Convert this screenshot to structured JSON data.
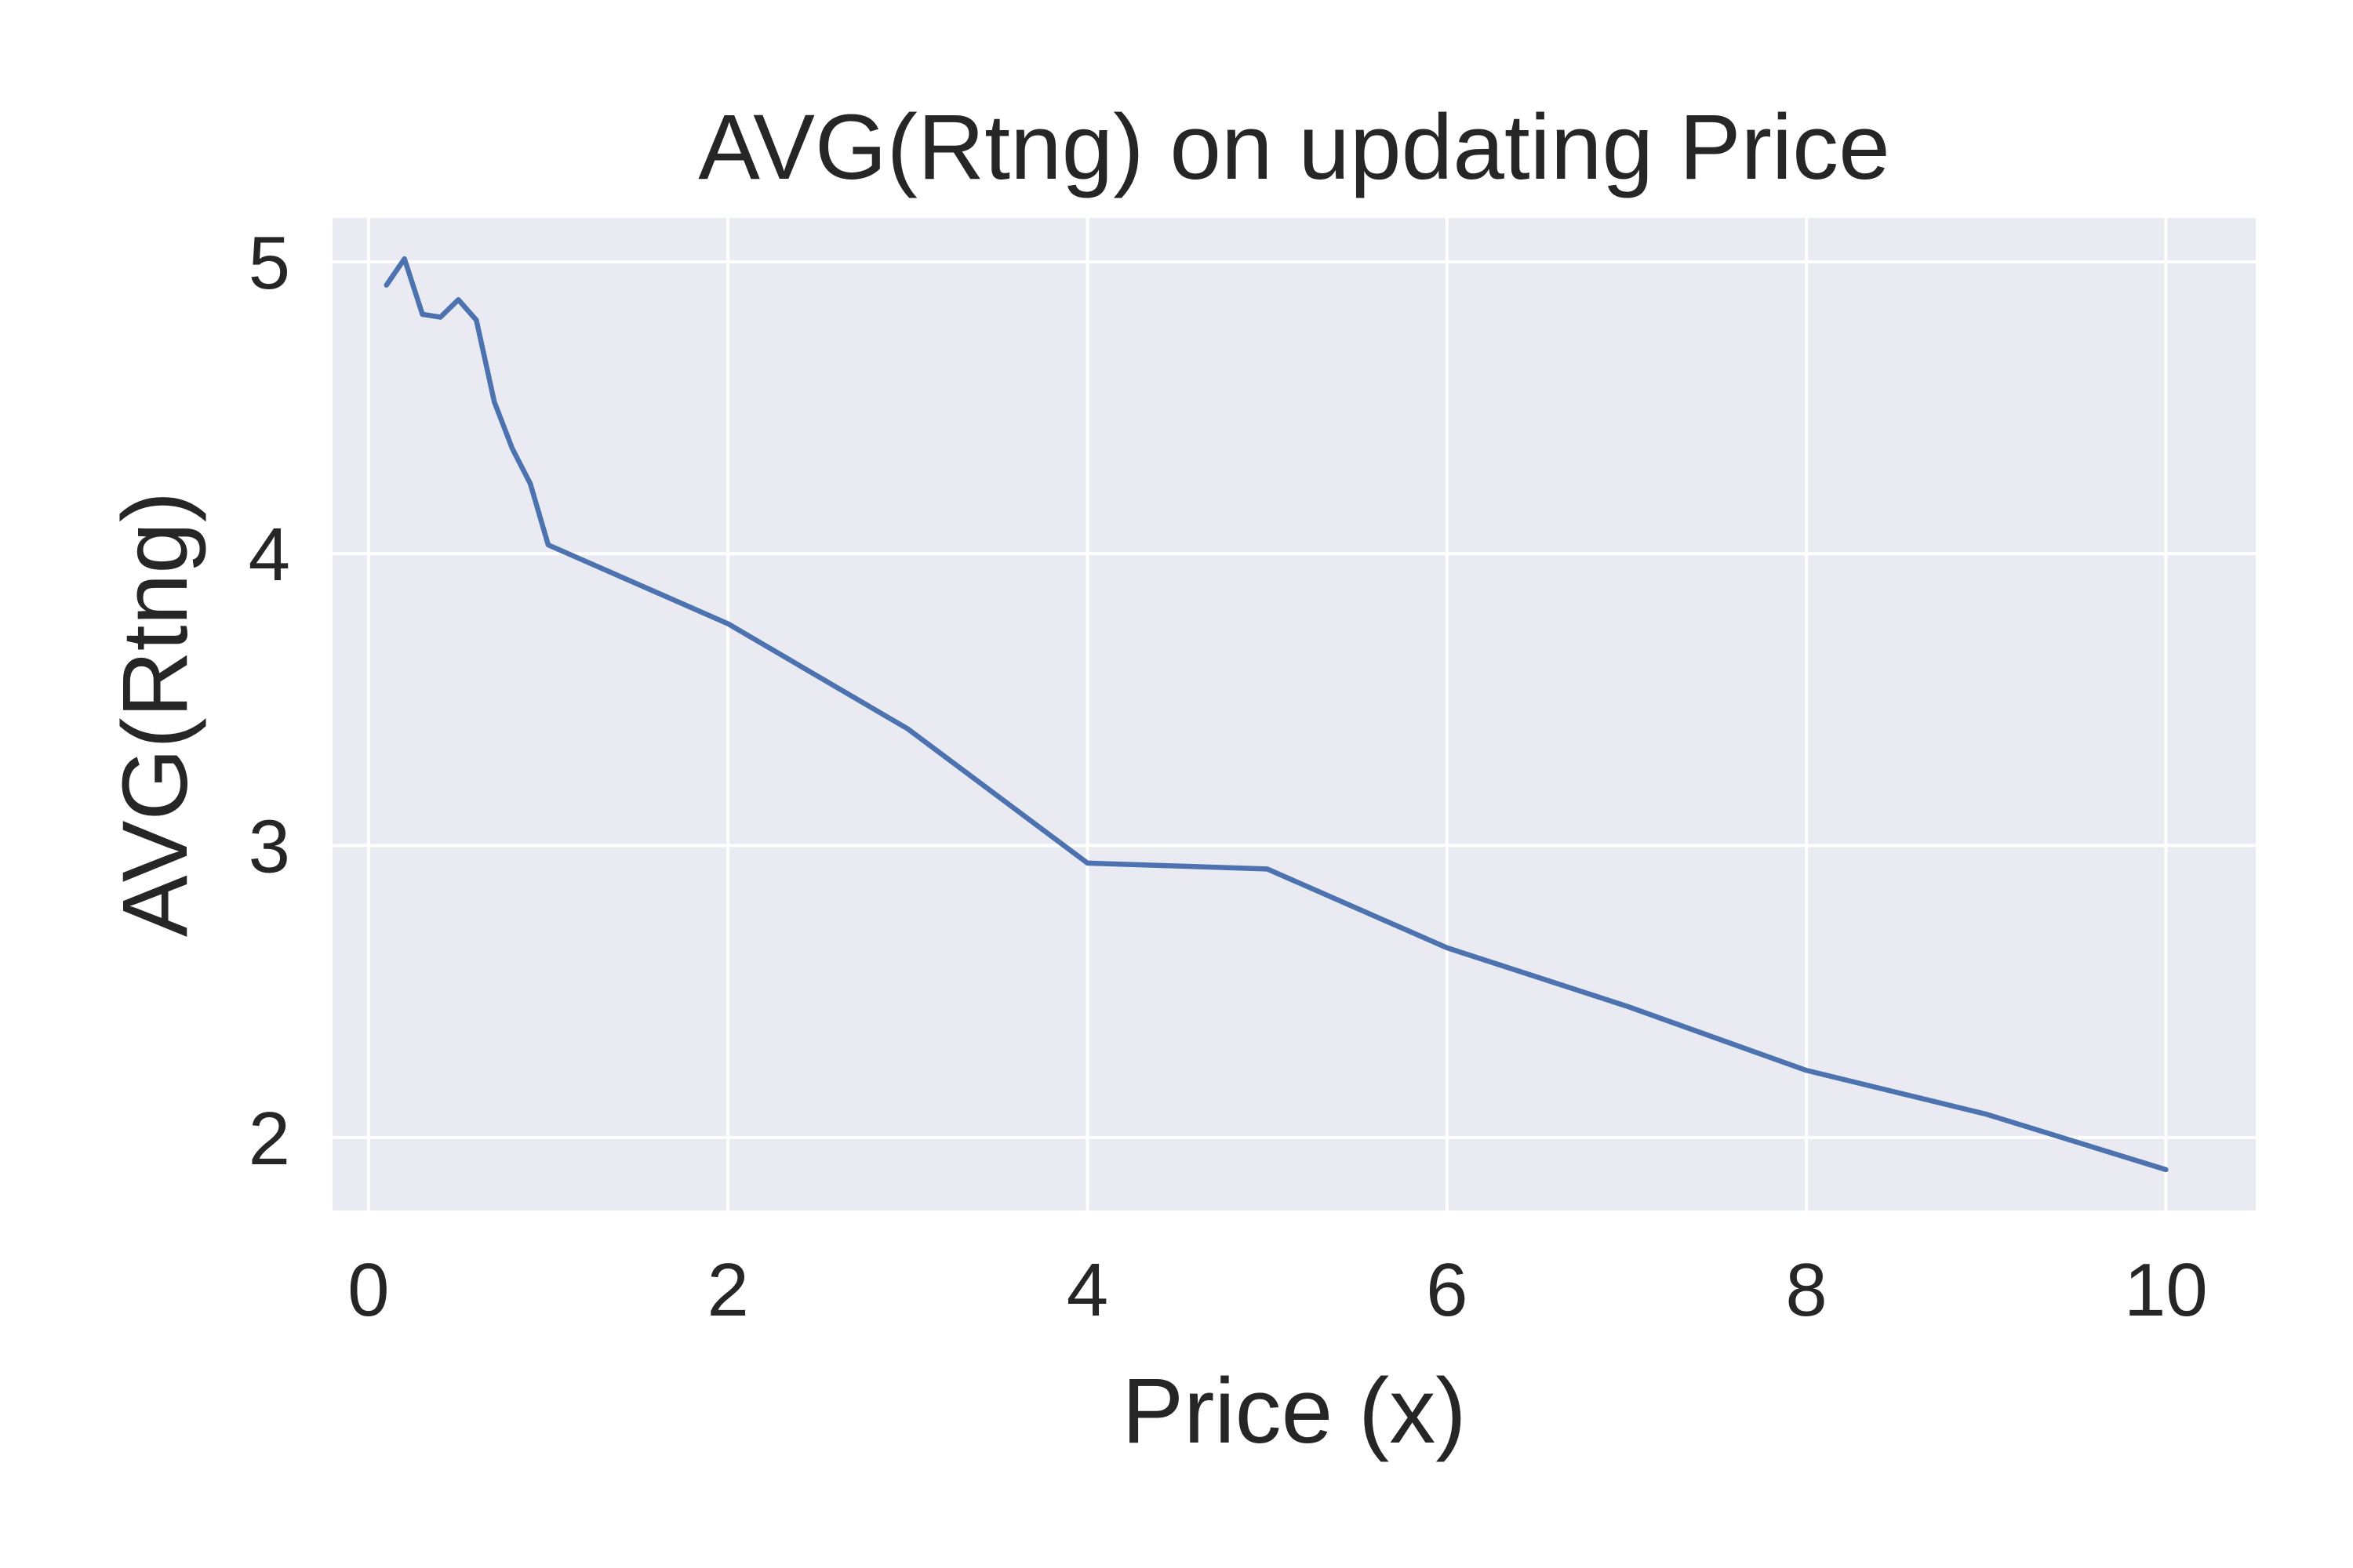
{
  "chart_data": {
    "type": "line",
    "title": "AVG(Rtng) on updating Price",
    "xlabel": "Price (x)",
    "ylabel": "AVG(Rtng)",
    "xlim": [
      -0.2,
      10.5
    ],
    "ylim": [
      1.75,
      5.15
    ],
    "xticks": [
      0,
      2,
      4,
      6,
      8,
      10
    ],
    "yticks": [
      2,
      3,
      4,
      5
    ],
    "grid": true,
    "legend": "none",
    "series": [
      {
        "color": "#4c72b0",
        "x": [
          0.1,
          0.2,
          0.3,
          0.4,
          0.5,
          0.6,
          0.7,
          0.8,
          0.9,
          1,
          2,
          3,
          4,
          5,
          6,
          7,
          8,
          9,
          10
        ],
        "y": [
          4.92,
          5.01,
          4.82,
          4.81,
          4.87,
          4.8,
          4.52,
          4.36,
          4.24,
          4.03,
          3.76,
          3.4,
          2.94,
          2.92,
          2.65,
          2.45,
          2.23,
          2.08,
          1.89
        ]
      }
    ]
  },
  "colors": {
    "plot_background": "#eaeaf2",
    "grid": "#ffffff",
    "line": "#4c72b0",
    "text": "#262626"
  }
}
